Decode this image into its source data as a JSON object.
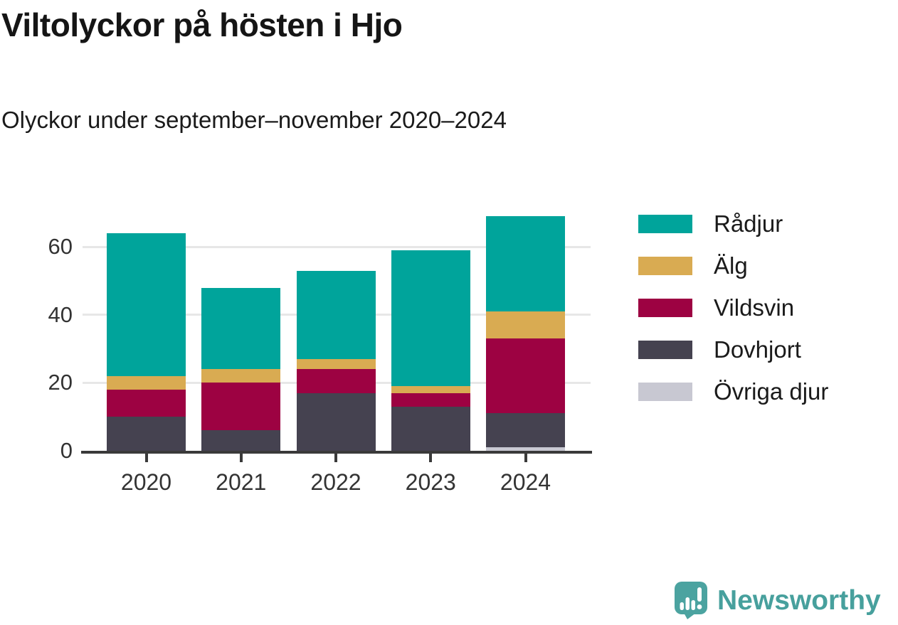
{
  "title": "Viltolyckor på hösten i Hjo",
  "subtitle": "Olyckor under september–november 2020–2024",
  "chart_data": {
    "type": "bar",
    "stacked": true,
    "title": "Viltolyckor på hösten i Hjo",
    "subtitle": "Olyckor under september–november 2020–2024",
    "categories": [
      "2020",
      "2021",
      "2022",
      "2023",
      "2024"
    ],
    "series": [
      {
        "name": "Rådjur",
        "color": "#00a49b",
        "values": [
          42,
          24,
          26,
          40,
          28
        ]
      },
      {
        "name": "Älg",
        "color": "#d9ab52",
        "values": [
          4,
          4,
          3,
          2,
          8
        ]
      },
      {
        "name": "Vildsvin",
        "color": "#9d0242",
        "values": [
          8,
          14,
          7,
          4,
          22
        ]
      },
      {
        "name": "Dovhjort",
        "color": "#454250",
        "values": [
          10,
          6,
          17,
          13,
          10
        ]
      },
      {
        "name": "Övriga djur",
        "color": "#c8c8d2",
        "values": [
          0,
          0,
          0,
          0,
          1
        ]
      }
    ],
    "totals": [
      64,
      48,
      53,
      59,
      69
    ],
    "xlabel": "",
    "ylabel": "",
    "yticks": [
      0,
      20,
      40,
      60
    ],
    "ylim": [
      0,
      72
    ],
    "grid": true,
    "legend_position": "right",
    "stack_order_bottom_to_top": [
      "Övriga djur",
      "Dovhjort",
      "Vildsvin",
      "Älg",
      "Rådjur"
    ]
  },
  "colors": {
    "grid": "#e7e7e7",
    "axis": "#3a3a3a",
    "tick_text": "#333333",
    "title_text": "#151515",
    "brand_teal": "#47a09d",
    "brand_icon_teal": "#4ba3a0"
  },
  "footer": {
    "brand": "Newsworthy"
  }
}
